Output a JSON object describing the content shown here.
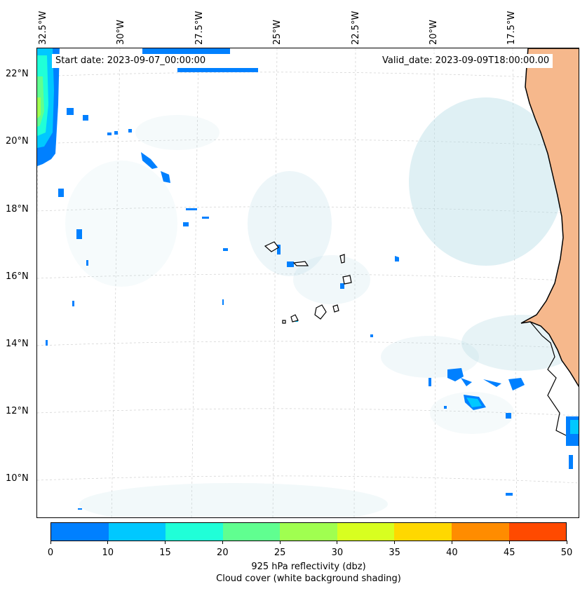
{
  "map": {
    "lon_labels": [
      "32.5°W",
      "30°W",
      "27.5°W",
      "25°W",
      "22.5°W",
      "20°W",
      "17.5°W"
    ],
    "lat_labels": [
      "22°N",
      "20°N",
      "18°N",
      "16°N",
      "14°N",
      "12°N",
      "10°N"
    ],
    "start_date": "Start date: 2023-09-07_00:00:00",
    "valid_date": "Valid_date: 2023-09-09T18:00:00.00",
    "land_color": "#f6b88c",
    "cloud_color": "#b9dde6"
  },
  "colorbar": {
    "ticks": [
      "0",
      "10",
      "15",
      "20",
      "25",
      "30",
      "35",
      "40",
      "45",
      "50"
    ],
    "colors": [
      "#0080ff",
      "#00c8ff",
      "#20ffd8",
      "#60ff90",
      "#a0ff50",
      "#d8ff20",
      "#ffd800",
      "#ff8c00",
      "#ff4a00"
    ],
    "label": "925 hPa reflectivity (dbz)",
    "sublabel": "Cloud cover (white background shading)"
  }
}
